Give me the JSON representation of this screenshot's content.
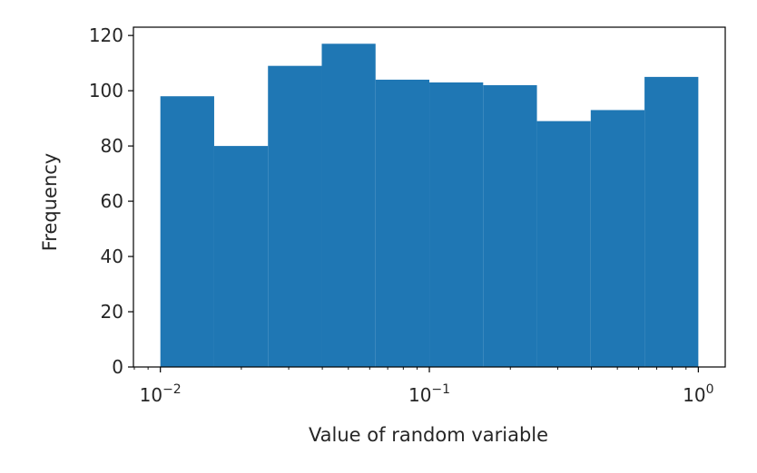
{
  "chart_data": {
    "type": "bar",
    "subtype": "histogram",
    "title": "",
    "xlabel": "Value of random variable",
    "ylabel": "Frequency",
    "xscale": "log",
    "xlim": [
      0.00794,
      1.259
    ],
    "ylim": [
      0,
      123
    ],
    "bin_edges": [
      0.01,
      0.01585,
      0.02512,
      0.03981,
      0.0631,
      0.1,
      0.1585,
      0.2512,
      0.3981,
      0.631,
      1.0
    ],
    "values": [
      98,
      80,
      109,
      117,
      104,
      103,
      102,
      89,
      93,
      105
    ],
    "y_ticks": [
      {
        "value": 0,
        "label": "0"
      },
      {
        "value": 20,
        "label": "20"
      },
      {
        "value": 40,
        "label": "40"
      },
      {
        "value": 60,
        "label": "60"
      },
      {
        "value": 80,
        "label": "80"
      },
      {
        "value": 100,
        "label": "100"
      },
      {
        "value": 120,
        "label": "120"
      }
    ],
    "x_ticks": [
      {
        "value": 0.01,
        "base": "10",
        "exponent": "−2"
      },
      {
        "value": 0.1,
        "base": "10",
        "exponent": "−1"
      },
      {
        "value": 1,
        "base": "10",
        "exponent": "0"
      }
    ],
    "grid": false,
    "legend": "none",
    "colors": {
      "bar": "#1f77b4",
      "axes": "#000000",
      "text": "#262626"
    }
  }
}
